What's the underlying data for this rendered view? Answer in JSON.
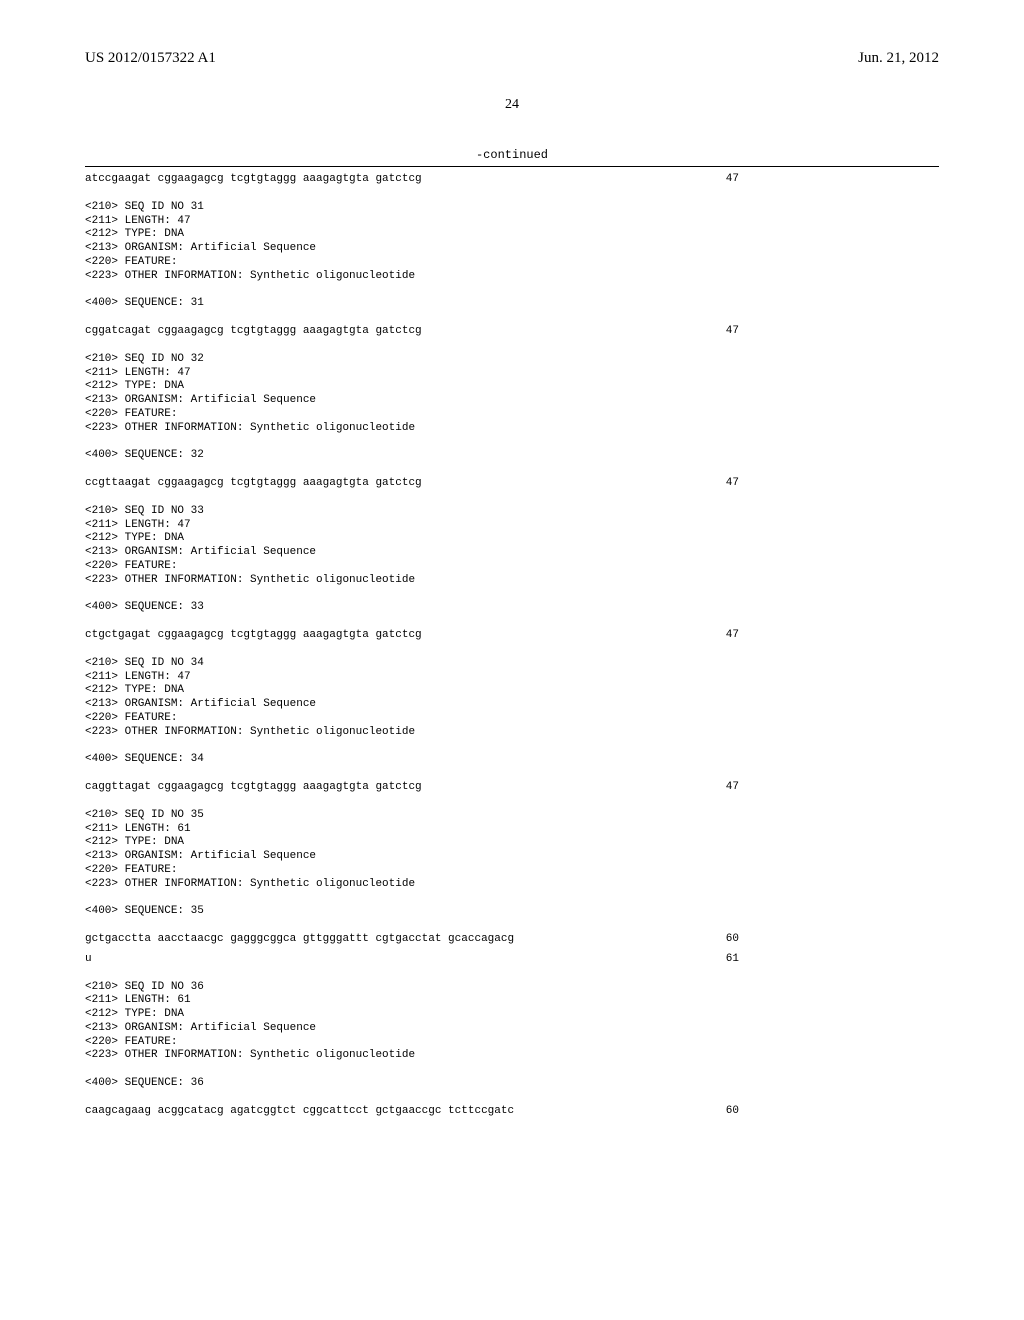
{
  "header": {
    "left": "US 2012/0157322 A1",
    "right": "Jun. 21, 2012"
  },
  "page_number": "24",
  "continued_label": "-continued",
  "entries": [
    {
      "type": "seqline",
      "seq": "atccgaagat cggaagagcg tcgtgtaggg aaagagtgta gatctcg",
      "num": "47"
    },
    {
      "type": "meta",
      "lines": [
        "<210> SEQ ID NO 31",
        "<211> LENGTH: 47",
        "<212> TYPE: DNA",
        "<213> ORGANISM: Artificial Sequence",
        "<220> FEATURE:",
        "<223> OTHER INFORMATION: Synthetic oligonucleotide"
      ]
    },
    {
      "type": "label",
      "text": "<400> SEQUENCE: 31"
    },
    {
      "type": "seqline",
      "seq": "cggatcagat cggaagagcg tcgtgtaggg aaagagtgta gatctcg",
      "num": "47"
    },
    {
      "type": "meta",
      "lines": [
        "<210> SEQ ID NO 32",
        "<211> LENGTH: 47",
        "<212> TYPE: DNA",
        "<213> ORGANISM: Artificial Sequence",
        "<220> FEATURE:",
        "<223> OTHER INFORMATION: Synthetic oligonucleotide"
      ]
    },
    {
      "type": "label",
      "text": "<400> SEQUENCE: 32"
    },
    {
      "type": "seqline",
      "seq": "ccgttaagat cggaagagcg tcgtgtaggg aaagagtgta gatctcg",
      "num": "47"
    },
    {
      "type": "meta",
      "lines": [
        "<210> SEQ ID NO 33",
        "<211> LENGTH: 47",
        "<212> TYPE: DNA",
        "<213> ORGANISM: Artificial Sequence",
        "<220> FEATURE:",
        "<223> OTHER INFORMATION: Synthetic oligonucleotide"
      ]
    },
    {
      "type": "label",
      "text": "<400> SEQUENCE: 33"
    },
    {
      "type": "seqline",
      "seq": "ctgctgagat cggaagagcg tcgtgtaggg aaagagtgta gatctcg",
      "num": "47"
    },
    {
      "type": "meta",
      "lines": [
        "<210> SEQ ID NO 34",
        "<211> LENGTH: 47",
        "<212> TYPE: DNA",
        "<213> ORGANISM: Artificial Sequence",
        "<220> FEATURE:",
        "<223> OTHER INFORMATION: Synthetic oligonucleotide"
      ]
    },
    {
      "type": "label",
      "text": "<400> SEQUENCE: 34"
    },
    {
      "type": "seqline",
      "seq": "caggttagat cggaagagcg tcgtgtaggg aaagagtgta gatctcg",
      "num": "47"
    },
    {
      "type": "meta",
      "lines": [
        "<210> SEQ ID NO 35",
        "<211> LENGTH: 61",
        "<212> TYPE: DNA",
        "<213> ORGANISM: Artificial Sequence",
        "<220> FEATURE:",
        "<223> OTHER INFORMATION: Synthetic oligonucleotide"
      ]
    },
    {
      "type": "label",
      "text": "<400> SEQUENCE: 35"
    },
    {
      "type": "seqline60",
      "seq": "gctgacctta aacctaacgc gagggcggca gttgggattt cgtgacctat gcaccagacg",
      "num": "60"
    },
    {
      "type": "seqline",
      "seq": "u",
      "num": "61"
    },
    {
      "type": "meta",
      "lines": [
        "<210> SEQ ID NO 36",
        "<211> LENGTH: 61",
        "<212> TYPE: DNA",
        "<213> ORGANISM: Artificial Sequence",
        "<220> FEATURE:",
        "<223> OTHER INFORMATION: Synthetic oligonucleotide"
      ]
    },
    {
      "type": "label",
      "text": "<400> SEQUENCE: 36"
    },
    {
      "type": "seqline60last",
      "seq": "caagcagaag acggcatacg agatcggtct cggcattcct gctgaaccgc tcttccgatc",
      "num": "60"
    }
  ]
}
